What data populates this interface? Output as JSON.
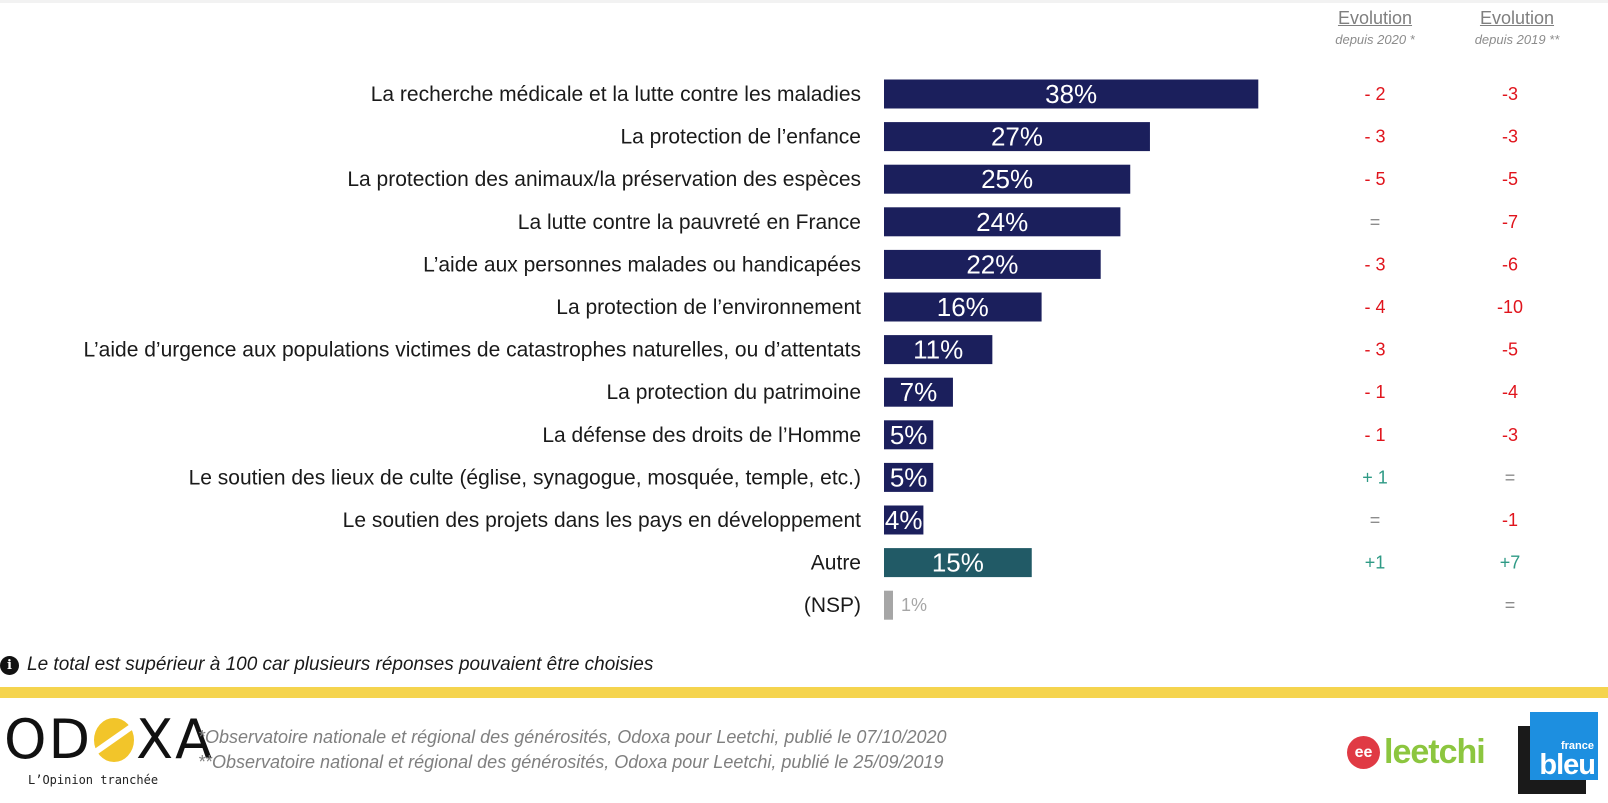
{
  "columns": {
    "evo2020": {
      "title": "Evolution",
      "subtitle": "depuis 2020 *"
    },
    "evo2019": {
      "title": "Evolution",
      "subtitle": "depuis 2019 **"
    }
  },
  "colors": {
    "main_bar": "#1b1f5c",
    "autre_bar": "#215a66",
    "nsp_bar": "#a6a6a6",
    "negative": "#e0141c",
    "positive": "#2e9a85",
    "neutral": "#8c8c8c"
  },
  "chart_data": {
    "type": "bar",
    "orientation": "horizontal",
    "title": "",
    "xlabel": "",
    "ylabel": "",
    "xlim": [
      0,
      40
    ],
    "grid": false,
    "categories": [
      "La recherche médicale et la lutte contre les maladies",
      "La protection de l’enfance",
      "La protection des animaux/la préservation des espèces",
      "La lutte contre la pauvreté en France",
      "L’aide aux personnes malades ou handicapées",
      "La protection de l’environnement",
      "L’aide d’urgence aux populations victimes de catastrophes naturelles, ou d’attentats",
      "La protection du patrimoine",
      "La défense des droits de l’Homme",
      "Le soutien des lieux de culte (église, synagogue, mosquée, temple, etc.)",
      "Le soutien des projets dans les pays en développement",
      "Autre",
      "(NSP)"
    ],
    "values": [
      38,
      27,
      25,
      24,
      22,
      16,
      11,
      7,
      5,
      5,
      4,
      15,
      1
    ],
    "value_labels": [
      "38%",
      "27%",
      "25%",
      "24%",
      "22%",
      "16%",
      "11%",
      "7%",
      "5%",
      "5%",
      "4%",
      "15%",
      "1%"
    ],
    "bar_kind": [
      "main",
      "main",
      "main",
      "main",
      "main",
      "main",
      "main",
      "main",
      "main",
      "main",
      "main",
      "autre",
      "nsp"
    ],
    "evolution_since_2020": [
      "- 2",
      "- 3",
      "- 5",
      "=",
      "- 3",
      "- 4",
      "- 3",
      "- 1",
      "- 1",
      "+ 1",
      "=",
      "+1",
      ""
    ],
    "evolution_since_2019": [
      "-3",
      "-3",
      "-5",
      "-7",
      "-6",
      "-10",
      "-5",
      "-4",
      "-3",
      "=",
      "-1",
      "+7",
      "="
    ]
  },
  "note": {
    "icon": "info-icon",
    "symbol": "i",
    "text": "Le total est supérieur à 100 car plusieurs réponses pouvaient être choisies"
  },
  "footer": {
    "odoxa_logo_left": "OD",
    "odoxa_logo_right": "XA",
    "odoxa_tagline": "L’Opinion tranchée",
    "source_2020": "*Observatoire nationale et régional des générosités, Odoxa pour Leetchi, publié le 07/10/2020",
    "source_2019": "**Observatoire national et régional des générosités, Odoxa pour Leetchi, publié le 25/09/2019",
    "leetchi_mark": "ee",
    "leetchi_word": "leetchi",
    "francebleu_top": "france",
    "francebleu_bottom": "bleu"
  }
}
